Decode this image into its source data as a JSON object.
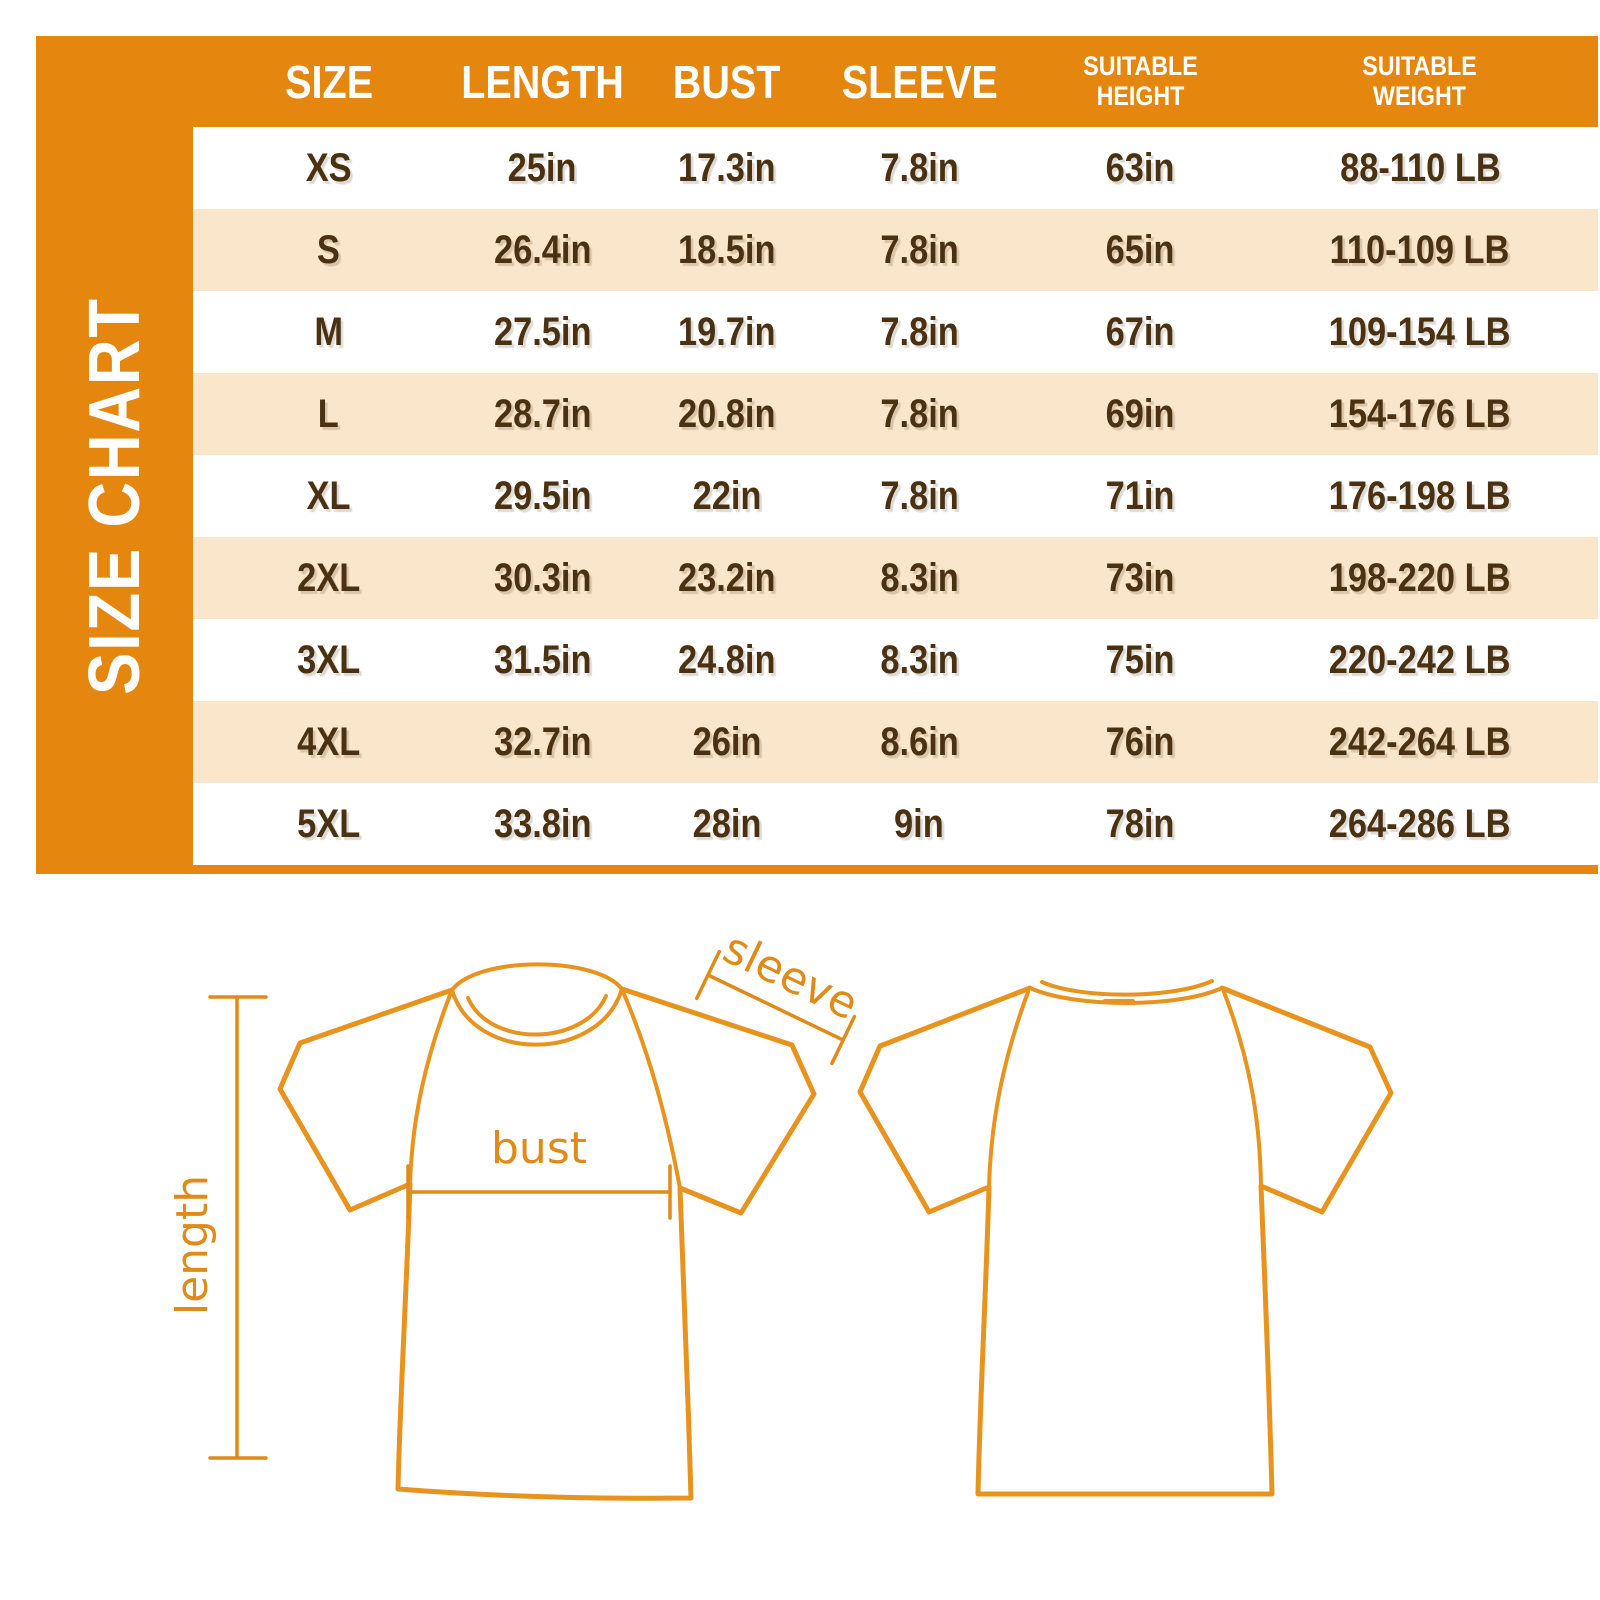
{
  "panel": {
    "vertical_title": "SIZE CHART"
  },
  "chart_data": {
    "type": "table",
    "title": "SIZE CHART",
    "columns": [
      "SIZE",
      "LENGTH",
      "BUST",
      "SLEEVE",
      "SUITABLE\nHEIGHT",
      "SUITABLE\nWEIGHT"
    ],
    "rows": [
      [
        "XS",
        "25in",
        "17.3in",
        "7.8in",
        "63in",
        "88-110 LB"
      ],
      [
        "S",
        "26.4in",
        "18.5in",
        "7.8in",
        "65in",
        "110-109 LB"
      ],
      [
        "M",
        "27.5in",
        "19.7in",
        "7.8in",
        "67in",
        "109-154 LB"
      ],
      [
        "L",
        "28.7in",
        "20.8in",
        "7.8in",
        "69in",
        "154-176 LB"
      ],
      [
        "XL",
        "29.5in",
        "22in",
        "7.8in",
        "71in",
        "176-198 LB"
      ],
      [
        "2XL",
        "30.3in",
        "23.2in",
        "8.3in",
        "73in",
        "198-220 LB"
      ],
      [
        "3XL",
        "31.5in",
        "24.8in",
        "8.3in",
        "75in",
        "220-242 LB"
      ],
      [
        "4XL",
        "32.7in",
        "26in",
        "8.6in",
        "76in",
        "242-264 LB"
      ],
      [
        "5XL",
        "33.8in",
        "28in",
        "9in",
        "78in",
        "264-286 LB"
      ]
    ]
  },
  "diagram": {
    "length_label": "length",
    "bust_label": "bust",
    "sleeve_label": "sleeve"
  },
  "colors": {
    "panel_orange": "#E5870F",
    "row_cream": "#FAE6CB",
    "row_white": "#FFFFFF",
    "text_brown": "#4A3112",
    "header_text": "#FFFFFF",
    "outline_orange": "#E8931D"
  }
}
